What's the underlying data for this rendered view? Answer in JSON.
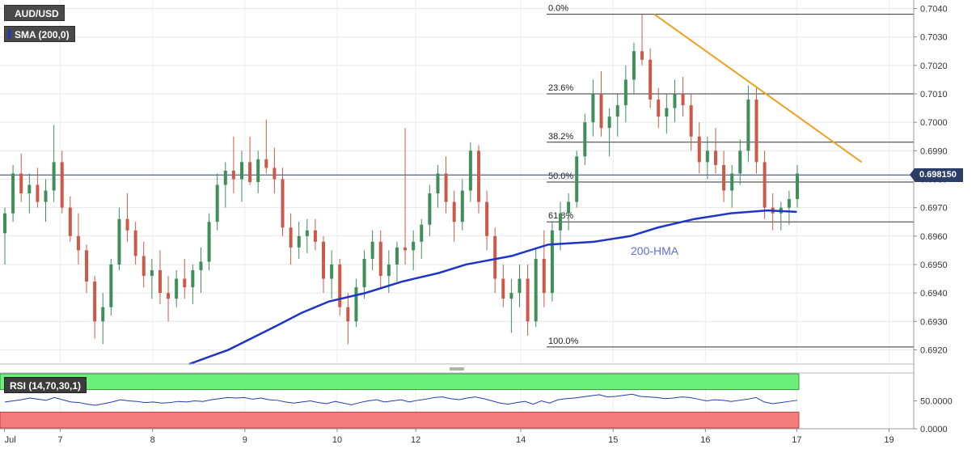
{
  "header": {
    "symbol": "AUD/USD",
    "indicator": "SMA (200,0)",
    "indicator_color": "#1f35c8",
    "rsi_label": "RSI (14,70,30,1)"
  },
  "price_badge": "0.698150",
  "colors": {
    "up": "#3f8f5b",
    "down": "#cd5a48",
    "sma": "#1f35c8",
    "trendline": "#f0a020",
    "rsi_line": "#1f3fa8",
    "rsi_overbought_zone": "#6cf07c",
    "rsi_oversold_zone": "#f47c7c"
  },
  "chart_data": [
    {
      "type": "candlestick",
      "title": "AUD/USD",
      "ylim": [
        0.6915,
        0.7043
      ],
      "y_ticks": [
        "0.6920",
        "0.6930",
        "0.6940",
        "0.6950",
        "0.6960",
        "0.6970",
        "0.6980",
        "0.6990",
        "0.7000",
        "0.7010",
        "0.7020",
        "0.7030",
        "0.7040"
      ],
      "x_tick_labels": [
        "Jul",
        "7",
        "8",
        "9",
        "10",
        "12",
        "14",
        "15",
        "16",
        "17",
        "19"
      ],
      "grid": true,
      "current_price": 0.69815,
      "fibonacci_levels": [
        {
          "label": "0.0%",
          "value": 0.7038
        },
        {
          "label": "23.6%",
          "value": 0.701
        },
        {
          "label": "38.2%",
          "value": 0.6993
        },
        {
          "label": "50.0%",
          "value": 0.6979
        },
        {
          "label": "61.8%",
          "value": 0.6965
        },
        {
          "label": "100.0%",
          "value": 0.6921
        }
      ],
      "sma_200": {
        "name": "SMA (200,0)",
        "annotation": "200-HMA",
        "points": [
          [
            0.207,
            0.6915
          ],
          [
            0.25,
            0.692
          ],
          [
            0.3,
            0.6928
          ],
          [
            0.33,
            0.6933
          ],
          [
            0.36,
            0.6937
          ],
          [
            0.4,
            0.694
          ],
          [
            0.44,
            0.6944
          ],
          [
            0.48,
            0.6947
          ],
          [
            0.51,
            0.695
          ],
          [
            0.56,
            0.6953
          ],
          [
            0.6,
            0.6957
          ],
          [
            0.65,
            0.6958
          ],
          [
            0.69,
            0.696
          ],
          [
            0.72,
            0.6963
          ],
          [
            0.76,
            0.6966
          ],
          [
            0.8,
            0.6968
          ],
          [
            0.84,
            0.6969
          ],
          [
            0.872,
            0.69685
          ]
        ]
      },
      "trendline": {
        "start": [
          0.716,
          0.7038
        ],
        "end": [
          0.943,
          0.6986
        ]
      },
      "candles": [
        [
          0.6961,
          0.697,
          0.695,
          0.6968
        ],
        [
          0.6968,
          0.6985,
          0.6965,
          0.6982
        ],
        [
          0.6982,
          0.6989,
          0.6972,
          0.6975
        ],
        [
          0.6975,
          0.6982,
          0.6968,
          0.6978
        ],
        [
          0.6978,
          0.6984,
          0.697,
          0.6972
        ],
        [
          0.6972,
          0.698,
          0.6965,
          0.6976
        ],
        [
          0.6976,
          0.6999,
          0.6972,
          0.6986
        ],
        [
          0.6986,
          0.699,
          0.6968,
          0.697
        ],
        [
          0.697,
          0.6974,
          0.6958,
          0.696
        ],
        [
          0.696,
          0.6968,
          0.695,
          0.6955
        ],
        [
          0.6955,
          0.6957,
          0.694,
          0.6944
        ],
        [
          0.6944,
          0.6946,
          0.6924,
          0.693
        ],
        [
          0.693,
          0.694,
          0.6922,
          0.6935
        ],
        [
          0.6935,
          0.6952,
          0.6932,
          0.695
        ],
        [
          0.695,
          0.697,
          0.6948,
          0.6966
        ],
        [
          0.6966,
          0.6975,
          0.6958,
          0.6962
        ],
        [
          0.6962,
          0.6965,
          0.695,
          0.6953
        ],
        [
          0.6953,
          0.6958,
          0.6942,
          0.6946
        ],
        [
          0.6946,
          0.6952,
          0.6938,
          0.6948
        ],
        [
          0.6948,
          0.6955,
          0.6936,
          0.694
        ],
        [
          0.694,
          0.6946,
          0.693,
          0.6938
        ],
        [
          0.6938,
          0.6948,
          0.6935,
          0.6945
        ],
        [
          0.6945,
          0.6952,
          0.6938,
          0.6942
        ],
        [
          0.6942,
          0.695,
          0.6936,
          0.6948
        ],
        [
          0.6948,
          0.6956,
          0.694,
          0.6951
        ],
        [
          0.6951,
          0.6968,
          0.6948,
          0.6965
        ],
        [
          0.6965,
          0.6982,
          0.6962,
          0.6978
        ],
        [
          0.6978,
          0.6986,
          0.697,
          0.6983
        ],
        [
          0.6983,
          0.6995,
          0.6975,
          0.698
        ],
        [
          0.698,
          0.699,
          0.6972,
          0.6986
        ],
        [
          0.6986,
          0.6995,
          0.6978,
          0.6979
        ],
        [
          0.6979,
          0.699,
          0.6975,
          0.6987
        ],
        [
          0.6987,
          0.7001,
          0.6982,
          0.6984
        ],
        [
          0.6984,
          0.6991,
          0.6975,
          0.698
        ],
        [
          0.698,
          0.6984,
          0.696,
          0.6963
        ],
        [
          0.6963,
          0.6968,
          0.695,
          0.6956
        ],
        [
          0.6956,
          0.6965,
          0.6952,
          0.696
        ],
        [
          0.696,
          0.6966,
          0.6954,
          0.6962
        ],
        [
          0.6962,
          0.6966,
          0.6955,
          0.6958
        ],
        [
          0.6958,
          0.696,
          0.694,
          0.6945
        ],
        [
          0.6945,
          0.6955,
          0.6938,
          0.695
        ],
        [
          0.695,
          0.6952,
          0.6932,
          0.6935
        ],
        [
          0.6935,
          0.694,
          0.6922,
          0.693
        ],
        [
          0.693,
          0.6945,
          0.6928,
          0.6942
        ],
        [
          0.6942,
          0.6955,
          0.6938,
          0.6952
        ],
        [
          0.6952,
          0.6962,
          0.6948,
          0.6958
        ],
        [
          0.6958,
          0.6962,
          0.6942,
          0.6946
        ],
        [
          0.6946,
          0.6955,
          0.694,
          0.695
        ],
        [
          0.695,
          0.6958,
          0.6944,
          0.6956
        ],
        [
          0.6956,
          0.6998,
          0.695,
          0.6955
        ],
        [
          0.6955,
          0.6962,
          0.6948,
          0.6958
        ],
        [
          0.6958,
          0.6966,
          0.6952,
          0.6964
        ],
        [
          0.6964,
          0.6978,
          0.696,
          0.6975
        ],
        [
          0.6975,
          0.6985,
          0.697,
          0.6982
        ],
        [
          0.6982,
          0.6988,
          0.6968,
          0.6972
        ],
        [
          0.6972,
          0.6976,
          0.6958,
          0.6965
        ],
        [
          0.6965,
          0.698,
          0.6962,
          0.6976
        ],
        [
          0.6976,
          0.6993,
          0.6972,
          0.699
        ],
        [
          0.699,
          0.6992,
          0.6968,
          0.6972
        ],
        [
          0.6972,
          0.6976,
          0.6955,
          0.696
        ],
        [
          0.696,
          0.6963,
          0.694,
          0.6945
        ],
        [
          0.6945,
          0.695,
          0.6935,
          0.6938
        ],
        [
          0.6938,
          0.6945,
          0.6926,
          0.694
        ],
        [
          0.694,
          0.695,
          0.6935,
          0.6945
        ],
        [
          0.6945,
          0.695,
          0.6925,
          0.693
        ],
        [
          0.693,
          0.6956,
          0.6928,
          0.6952
        ],
        [
          0.6952,
          0.6962,
          0.6935,
          0.694
        ],
        [
          0.694,
          0.6965,
          0.6937,
          0.6962
        ],
        [
          0.6962,
          0.6972,
          0.6955,
          0.6968
        ],
        [
          0.6968,
          0.6975,
          0.6962,
          0.6972
        ],
        [
          0.6972,
          0.699,
          0.697,
          0.6988
        ],
        [
          0.6988,
          0.7003,
          0.6985,
          0.7
        ],
        [
          0.7,
          0.7015,
          0.6995,
          0.701
        ],
        [
          0.701,
          0.7018,
          0.6995,
          0.6998
        ],
        [
          0.6998,
          0.7005,
          0.6988,
          0.7002
        ],
        [
          0.7002,
          0.701,
          0.6995,
          0.7006
        ],
        [
          0.7006,
          0.702,
          0.7,
          0.7015
        ],
        [
          0.7015,
          0.7028,
          0.701,
          0.7025
        ],
        [
          0.7025,
          0.7038,
          0.702,
          0.7022
        ],
        [
          0.7022,
          0.7026,
          0.7005,
          0.7008
        ],
        [
          0.7008,
          0.7012,
          0.6998,
          0.7002
        ],
        [
          0.7002,
          0.701,
          0.6996,
          0.7005
        ],
        [
          0.7005,
          0.7015,
          0.7,
          0.701
        ],
        [
          0.701,
          0.7016,
          0.7002,
          0.7006
        ],
        [
          0.7006,
          0.701,
          0.699,
          0.6995
        ],
        [
          0.6995,
          0.7,
          0.6982,
          0.6986
        ],
        [
          0.6986,
          0.6995,
          0.698,
          0.699
        ],
        [
          0.699,
          0.6998,
          0.6982,
          0.6985
        ],
        [
          0.6985,
          0.699,
          0.6972,
          0.6976
        ],
        [
          0.6976,
          0.6985,
          0.697,
          0.6982
        ],
        [
          0.6982,
          0.6994,
          0.6978,
          0.699
        ],
        [
          0.699,
          0.7013,
          0.6986,
          0.7008
        ],
        [
          0.7008,
          0.7012,
          0.6982,
          0.6986
        ],
        [
          0.6986,
          0.699,
          0.6966,
          0.697
        ],
        [
          0.697,
          0.6975,
          0.6962,
          0.6968
        ],
        [
          0.6968,
          0.6972,
          0.6962,
          0.697
        ],
        [
          0.697,
          0.6976,
          0.6964,
          0.6973
        ],
        [
          0.6973,
          0.6985,
          0.697,
          0.6982
        ]
      ]
    },
    {
      "type": "line",
      "title": "RSI (14,70,30,1)",
      "ylim": [
        0,
        100
      ],
      "y_ticks": [
        "0.0000",
        "50.0000"
      ],
      "overbought": 70,
      "oversold": 30,
      "series": [
        {
          "name": "RSI (14,70,30,1)",
          "values": [
            48,
            50,
            52,
            55,
            53,
            51,
            56,
            52,
            48,
            47,
            44,
            42,
            45,
            48,
            52,
            50,
            49,
            47,
            48,
            46,
            47,
            49,
            48,
            50,
            49,
            52,
            54,
            56,
            55,
            56,
            53,
            55,
            52,
            51,
            48,
            46,
            48,
            50,
            47,
            45,
            49,
            46,
            43,
            47,
            50,
            52,
            48,
            50,
            52,
            48,
            51,
            53,
            56,
            57,
            54,
            52,
            55,
            57,
            54,
            50,
            46,
            44,
            47,
            49,
            44,
            50,
            46,
            52,
            54,
            55,
            57,
            59,
            61,
            57,
            58,
            60,
            62,
            58,
            57,
            56,
            54,
            55,
            57,
            56,
            53,
            50,
            52,
            51,
            49,
            51,
            53,
            56,
            48,
            45,
            47,
            49,
            51
          ]
        }
      ]
    }
  ]
}
